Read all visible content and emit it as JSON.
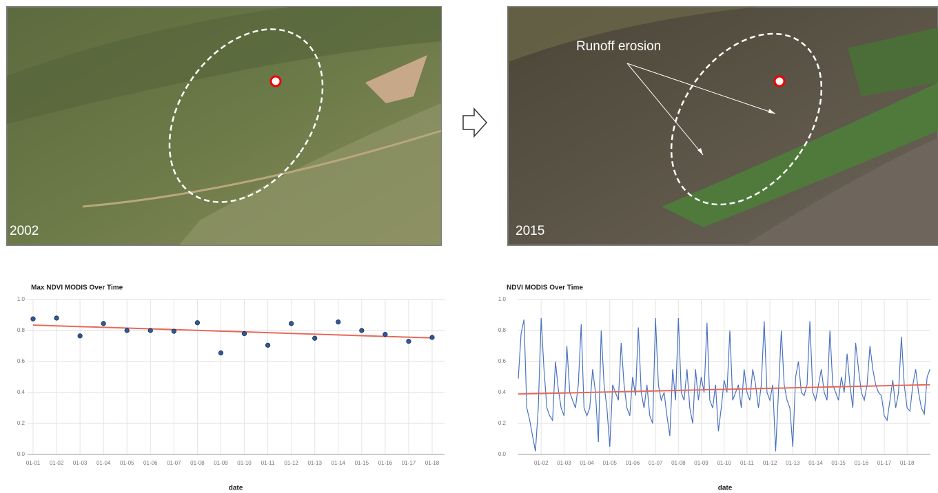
{
  "images": [
    {
      "year": "2002"
    },
    {
      "year": "2015",
      "annotation": "Runoff erosion"
    }
  ],
  "chart_data": [
    {
      "type": "scatter",
      "title": "Max NDVI MODIS Over Time",
      "x_label": "date",
      "categories": [
        "01-01",
        "01-02",
        "01-03",
        "01-04",
        "01-05",
        "01-06",
        "01-07",
        "01-08",
        "01-09",
        "01-10",
        "01-11",
        "01-12",
        "01-13",
        "01-14",
        "01-15",
        "01-16",
        "01-17",
        "01-18"
      ],
      "values": [
        0.875,
        0.88,
        0.765,
        0.845,
        0.8,
        0.8,
        0.795,
        0.85,
        0.655,
        0.78,
        0.705,
        0.845,
        0.75,
        0.855,
        0.8,
        0.775,
        0.73,
        0.755
      ],
      "color": "#2e5a9e",
      "trend": {
        "color": "#e8685a",
        "values": [
          0.835,
          0.752
        ]
      },
      "ylim": [
        0,
        1
      ],
      "yticks": [
        {
          "value": 0,
          "label": "0.0"
        },
        0.2,
        0.4,
        0.6,
        0.8,
        {
          "value": 1,
          "label": "1.0"
        }
      ],
      "grid": true
    },
    {
      "type": "line",
      "title": "NDVI MODIS Over Time",
      "x_label": "date",
      "categories": [
        null,
        null,
        null,
        null,
        null,
        null,
        null,
        null,
        "01-02",
        null,
        null,
        null,
        null,
        null,
        null,
        null,
        "01-03",
        null,
        null,
        null,
        null,
        null,
        null,
        null,
        "01-04",
        null,
        null,
        null,
        null,
        null,
        null,
        null,
        "01-05",
        null,
        null,
        null,
        null,
        null,
        null,
        null,
        "01-06",
        null,
        null,
        null,
        null,
        null,
        null,
        null,
        "01-07",
        null,
        null,
        null,
        null,
        null,
        null,
        null,
        "01-08",
        null,
        null,
        null,
        null,
        null,
        null,
        null,
        "01-09",
        null,
        null,
        null,
        null,
        null,
        null,
        null,
        "01-10",
        null,
        null,
        null,
        null,
        null,
        null,
        null,
        "01-11",
        null,
        null,
        null,
        null,
        null,
        null,
        null,
        "01-12",
        null,
        null,
        null,
        null,
        null,
        null,
        null,
        "01-13",
        null,
        null,
        null,
        null,
        null,
        null,
        null,
        "01-14",
        null,
        null,
        null,
        null,
        null,
        null,
        null,
        "01-15",
        null,
        null,
        null,
        null,
        null,
        null,
        null,
        "01-16",
        null,
        null,
        null,
        null,
        null,
        null,
        null,
        "01-17",
        null,
        null,
        null,
        null,
        null,
        null,
        null,
        "01-18",
        null,
        null,
        null,
        null,
        null,
        null,
        null,
        null
      ],
      "values": [
        0.49,
        0.78,
        0.87,
        0.3,
        0.22,
        0.12,
        0.02,
        0.3,
        0.88,
        0.55,
        0.3,
        0.25,
        0.22,
        0.6,
        0.42,
        0.3,
        0.25,
        0.7,
        0.4,
        0.35,
        0.3,
        0.45,
        0.84,
        0.3,
        0.25,
        0.3,
        0.55,
        0.4,
        0.08,
        0.8,
        0.45,
        0.3,
        0.05,
        0.45,
        0.4,
        0.35,
        0.72,
        0.45,
        0.3,
        0.25,
        0.5,
        0.38,
        0.82,
        0.4,
        0.3,
        0.45,
        0.25,
        0.2,
        0.88,
        0.45,
        0.35,
        0.4,
        0.25,
        0.12,
        0.55,
        0.35,
        0.88,
        0.4,
        0.35,
        0.55,
        0.3,
        0.2,
        0.55,
        0.35,
        0.5,
        0.4,
        0.85,
        0.35,
        0.3,
        0.45,
        0.15,
        0.3,
        0.48,
        0.4,
        0.8,
        0.35,
        0.4,
        0.45,
        0.3,
        0.55,
        0.4,
        0.35,
        0.55,
        0.45,
        0.3,
        0.45,
        0.86,
        0.4,
        0.35,
        0.45,
        0.02,
        0.4,
        0.8,
        0.45,
        0.35,
        0.3,
        0.05,
        0.5,
        0.6,
        0.4,
        0.38,
        0.45,
        0.86,
        0.4,
        0.35,
        0.45,
        0.55,
        0.4,
        0.35,
        0.8,
        0.45,
        0.4,
        0.35,
        0.5,
        0.4,
        0.65,
        0.45,
        0.3,
        0.72,
        0.55,
        0.4,
        0.35,
        0.45,
        0.7,
        0.55,
        0.45,
        0.4,
        0.38,
        0.25,
        0.22,
        0.35,
        0.48,
        0.3,
        0.4,
        0.76,
        0.45,
        0.3,
        0.28,
        0.45,
        0.55,
        0.4,
        0.3,
        0.26,
        0.5,
        0.55
      ],
      "color": "#4a72c0",
      "trend": {
        "color": "#e8685a",
        "values": [
          0.39,
          0.45
        ]
      },
      "ylim": [
        0,
        1
      ],
      "yticks": [
        {
          "value": 0,
          "label": "0.0"
        },
        0.2,
        0.4,
        0.6,
        0.8,
        {
          "value": 1,
          "label": "1.0"
        }
      ],
      "grid": true
    }
  ]
}
